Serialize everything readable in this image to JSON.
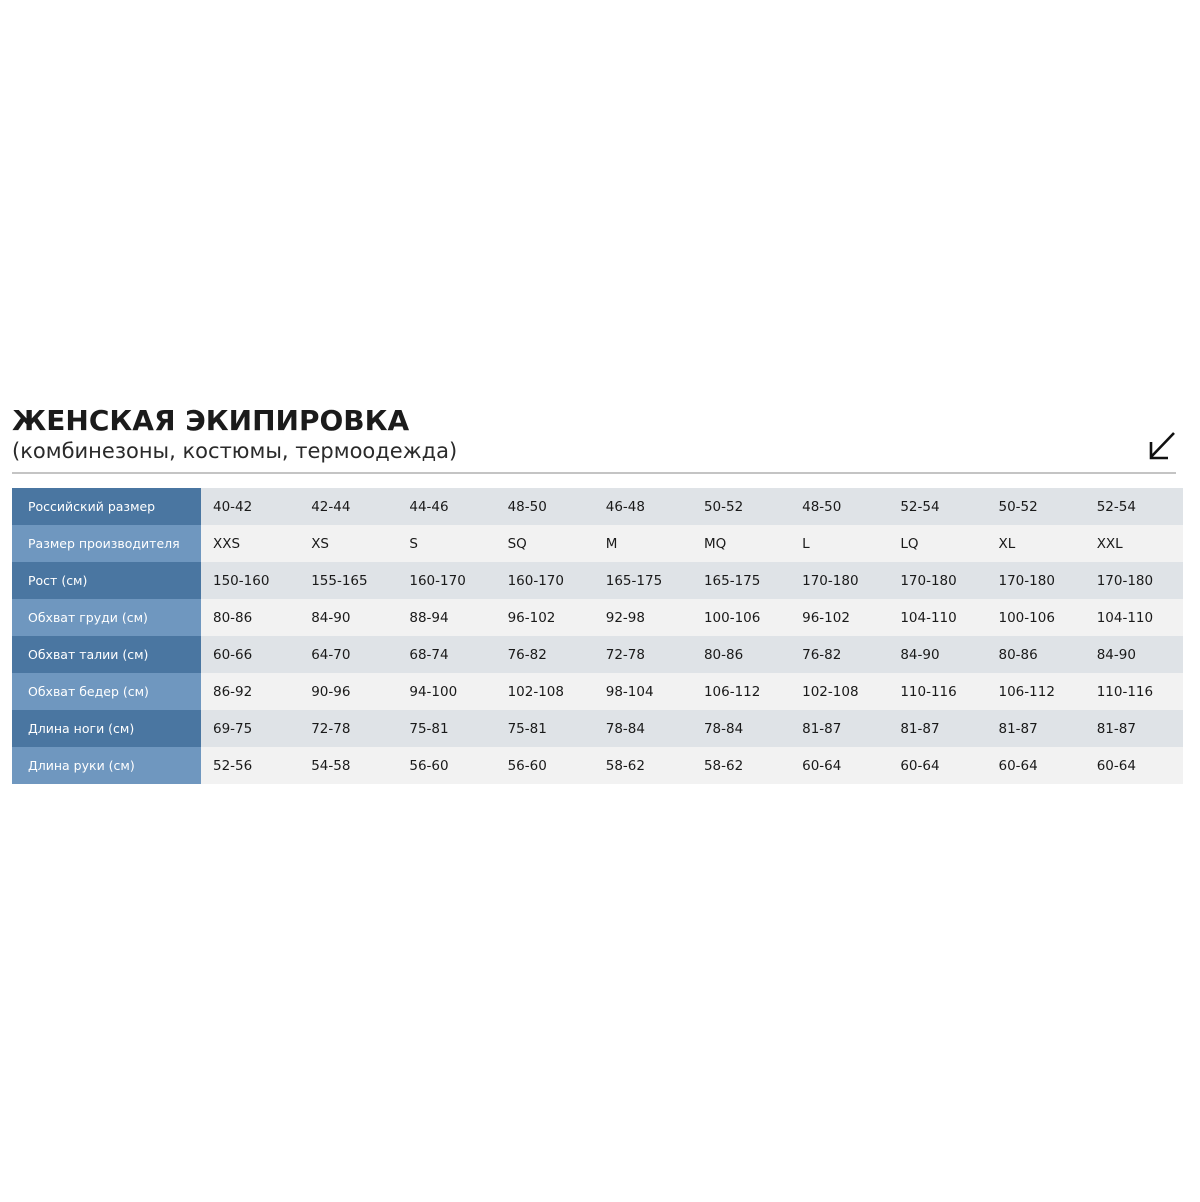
{
  "title": "ЖЕНСКАЯ ЭКИПИРОВКА",
  "subtitle": "(комбинезоны, костюмы, термоодежда)",
  "arrow_icon": "arrow-down-left-icon",
  "colors": {
    "label_dark": "#4a76a1",
    "label_light": "#6f97bf",
    "row_dark": "#dfe3e7",
    "row_light": "#f2f2f2"
  },
  "table": {
    "rows": [
      {
        "label": "Российский размер",
        "values": [
          "40-42",
          "42-44",
          "44-46",
          "48-50",
          "46-48",
          "50-52",
          "48-50",
          "52-54",
          "50-52",
          "52-54"
        ]
      },
      {
        "label": "Размер производителя",
        "values": [
          "XXS",
          "XS",
          "S",
          "SQ",
          "M",
          "MQ",
          "L",
          "LQ",
          "XL",
          "XXL"
        ]
      },
      {
        "label": "Рост (см)",
        "values": [
          "150-160",
          "155-165",
          "160-170",
          "160-170",
          "165-175",
          "165-175",
          "170-180",
          "170-180",
          "170-180",
          "170-180"
        ]
      },
      {
        "label": "Обхват груди (см)",
        "values": [
          "80-86",
          "84-90",
          "88-94",
          "96-102",
          "92-98",
          "100-106",
          "96-102",
          "104-110",
          "100-106",
          "104-110"
        ]
      },
      {
        "label": "Обхват талии (см)",
        "values": [
          "60-66",
          "64-70",
          "68-74",
          "76-82",
          "72-78",
          "80-86",
          "76-82",
          "84-90",
          "80-86",
          "84-90"
        ]
      },
      {
        "label": "Обхват бедер (см)",
        "values": [
          "86-92",
          "90-96",
          "94-100",
          "102-108",
          "98-104",
          "106-112",
          "102-108",
          "110-116",
          "106-112",
          "110-116"
        ]
      },
      {
        "label": "Длина ноги (см)",
        "values": [
          "69-75",
          "72-78",
          "75-81",
          "75-81",
          "78-84",
          "78-84",
          "81-87",
          "81-87",
          "81-87",
          "81-87"
        ]
      },
      {
        "label": "Длина руки (см)",
        "values": [
          "52-56",
          "54-58",
          "56-60",
          "56-60",
          "58-62",
          "58-62",
          "60-64",
          "60-64",
          "60-64",
          "60-64"
        ]
      }
    ]
  }
}
